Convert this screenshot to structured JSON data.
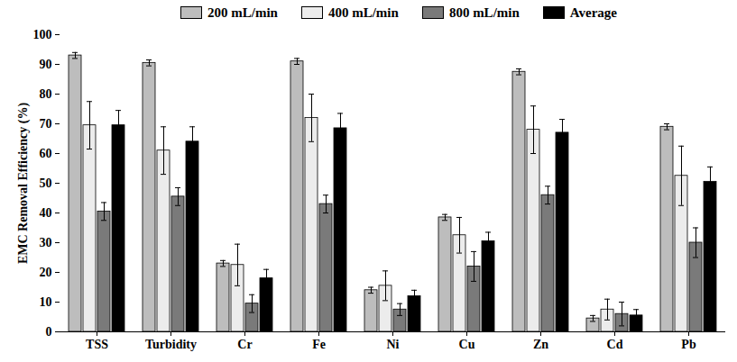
{
  "chart_data": {
    "type": "bar",
    "y_label": "EMC Removal Efficiency (%)",
    "categories": [
      "TSS",
      "Turbidity",
      "Cr",
      "Fe",
      "Ni",
      "Cu",
      "Zn",
      "Cd",
      "Pb"
    ],
    "series": [
      {
        "name": "200 mL/min",
        "color": "#bdbdbd",
        "values": [
          93,
          90.5,
          23,
          91,
          14,
          38.5,
          87.5,
          4.5,
          69
        ],
        "errors": [
          1,
          1,
          1,
          1,
          1,
          1,
          1,
          1,
          1
        ]
      },
      {
        "name": "400 mL/min",
        "color": "#ececec",
        "values": [
          69.5,
          61,
          22.5,
          72,
          15.5,
          32.5,
          68,
          7.5,
          52.5
        ],
        "errors": [
          8,
          8,
          7,
          8,
          5,
          6,
          8,
          3.5,
          10
        ]
      },
      {
        "name": "800 mL/min",
        "color": "#7a7a7a",
        "values": [
          40.5,
          45.5,
          9.5,
          43,
          7.5,
          22,
          46,
          6,
          30
        ],
        "errors": [
          3,
          3,
          3,
          3,
          2,
          5,
          3,
          4,
          5
        ]
      },
      {
        "name": "Average",
        "color": "#000000",
        "values": [
          69.5,
          64,
          18,
          68.5,
          12,
          30.5,
          67,
          5.5,
          50.5
        ],
        "errors": [
          5,
          5,
          3,
          5,
          2,
          3,
          4.5,
          2,
          5
        ]
      }
    ],
    "ylim": [
      0,
      100
    ],
    "yticks": [
      0,
      10,
      20,
      30,
      40,
      50,
      60,
      70,
      80,
      90,
      100
    ],
    "grid": false,
    "legend": "top"
  }
}
